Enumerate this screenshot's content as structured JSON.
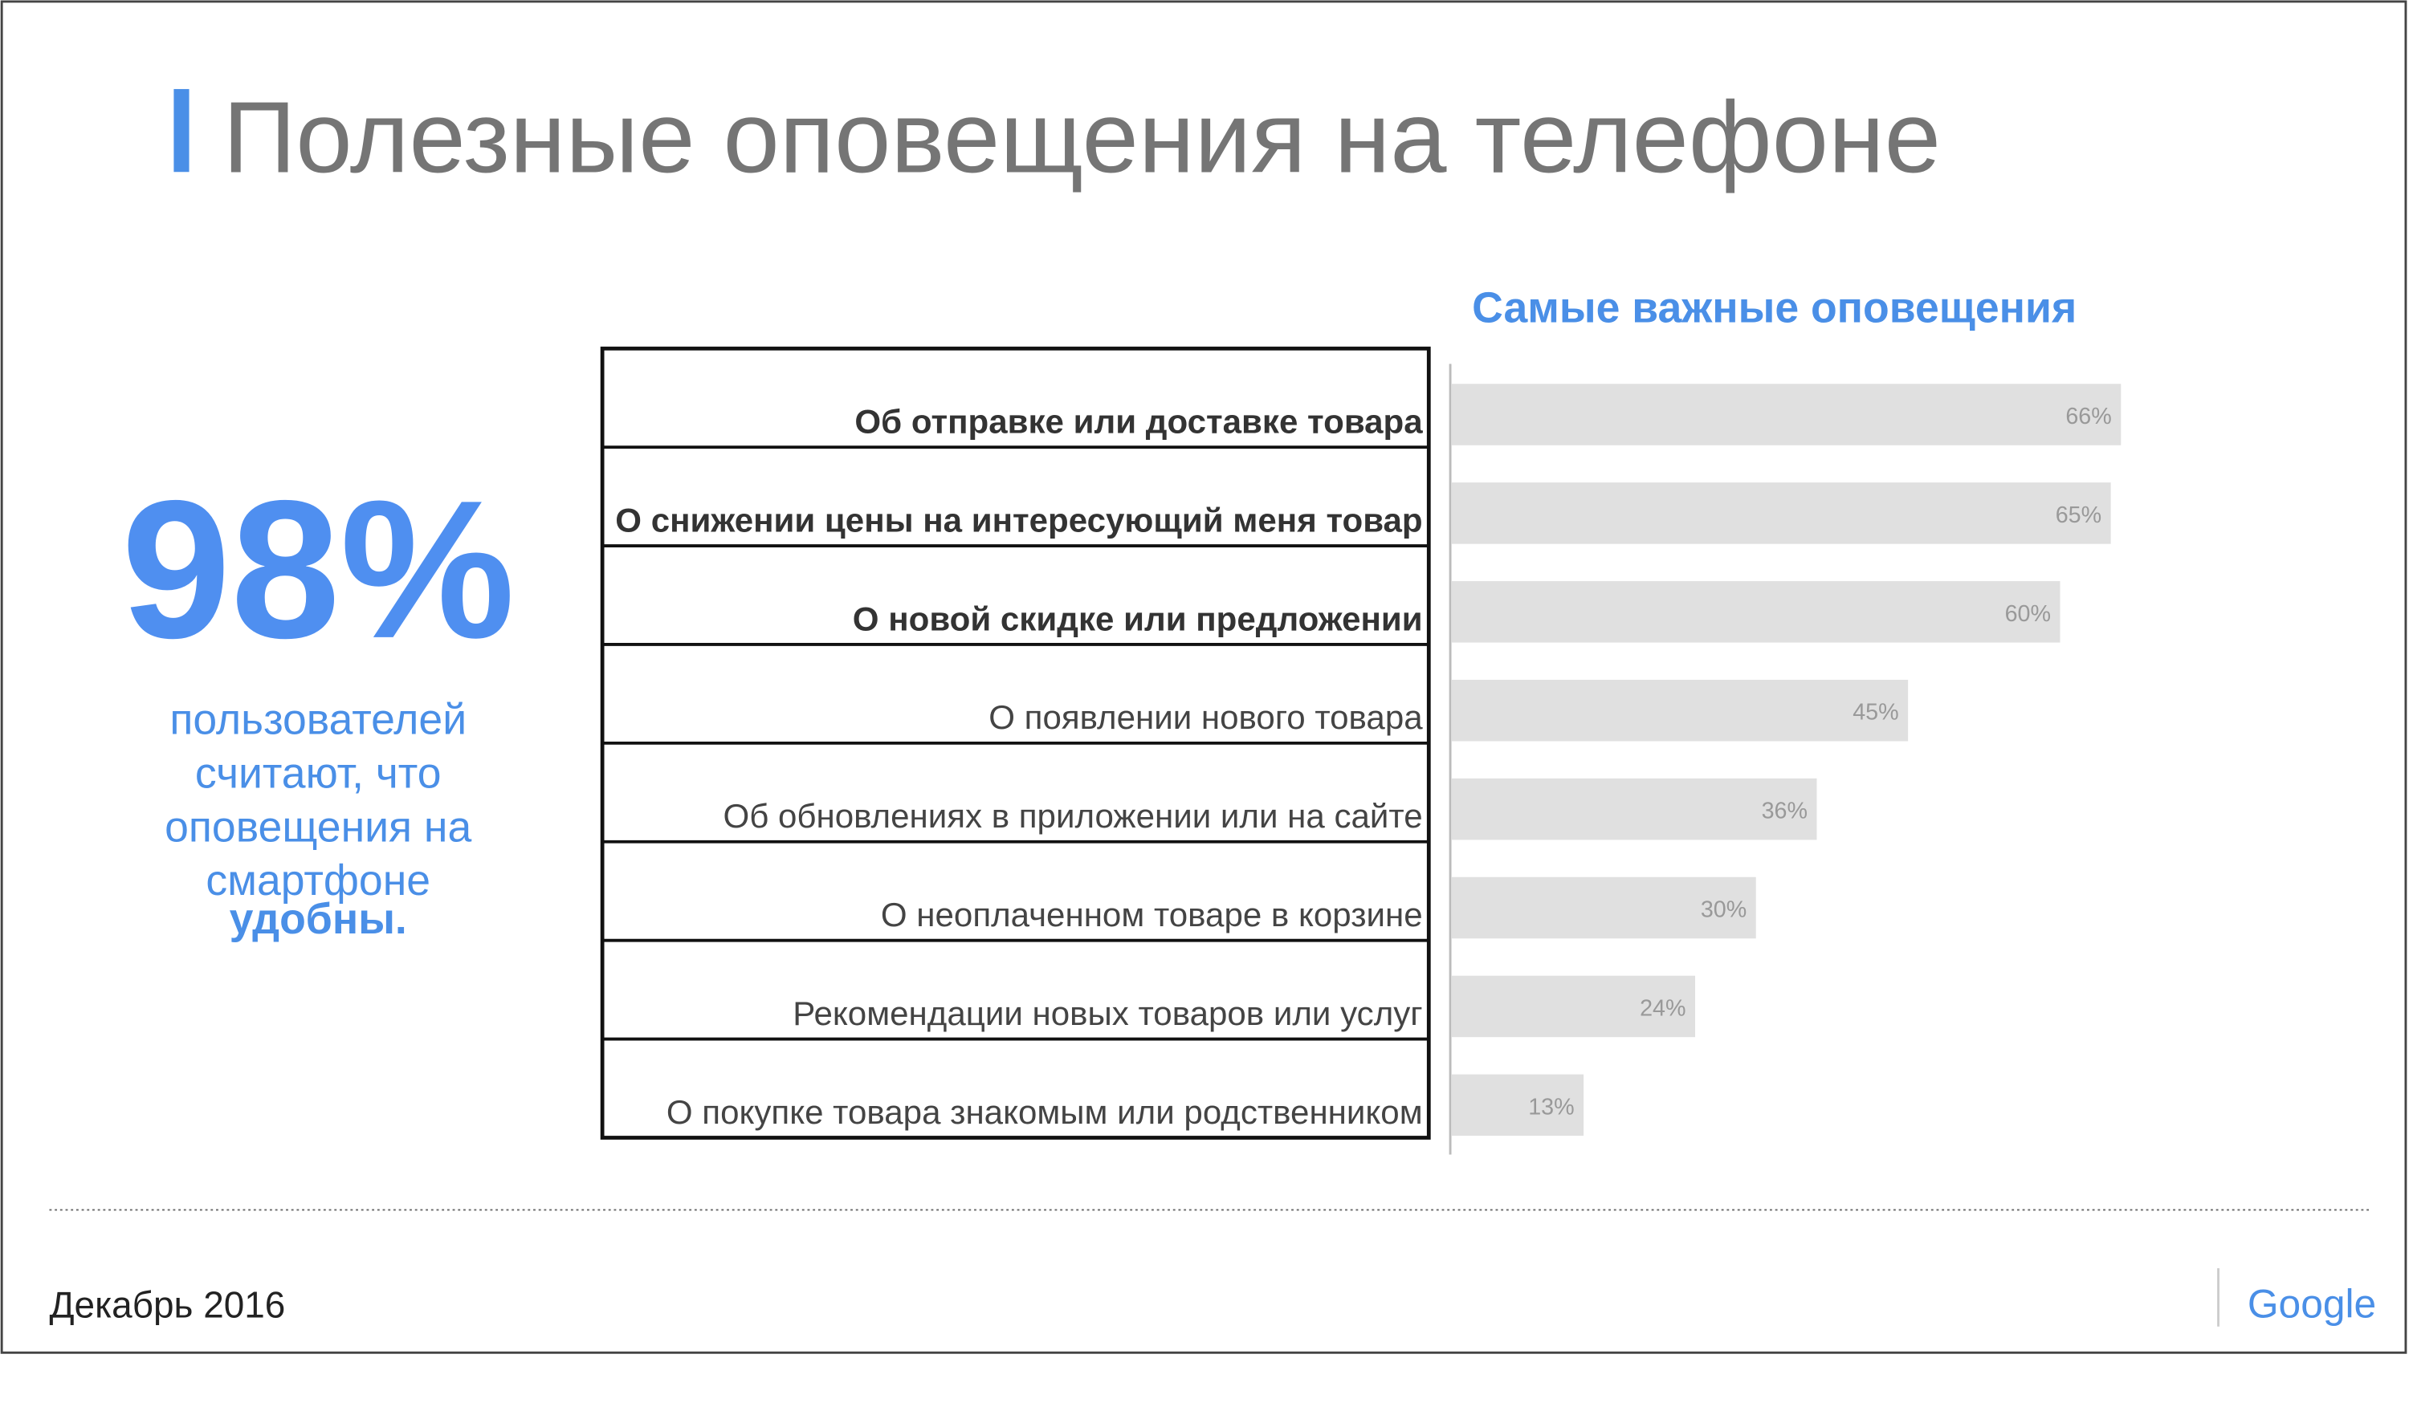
{
  "title": "Полезные оповещения на телефоне",
  "stat": {
    "value": "98%",
    "caption": [
      "пользователей",
      "считают, что",
      "оповещения на",
      "смартфоне"
    ],
    "emphasis": "удобны."
  },
  "footer": {
    "date": "Декабрь 2016",
    "logo": "Google"
  },
  "chart_data": {
    "type": "bar",
    "orientation": "horizontal",
    "title": "Самые важные оповещения",
    "categories": [
      "Об отправке или доставке товара",
      "О снижении цены на интересующий меня товар",
      "О новой скидке или предложении",
      "О появлении нового товара",
      "Об обновлениях в приложении или на сайте",
      "О неоплаченном товаре в корзине",
      "Рекомендации новых товаров или услуг",
      "О покупке товара знакомым или родственником"
    ],
    "values": [
      66,
      65,
      60,
      45,
      36,
      30,
      24,
      13
    ],
    "value_labels": [
      "66%",
      "65%",
      "60%",
      "45%",
      "36%",
      "30%",
      "24%",
      "13%"
    ],
    "color": "#e0e0e0"
  }
}
